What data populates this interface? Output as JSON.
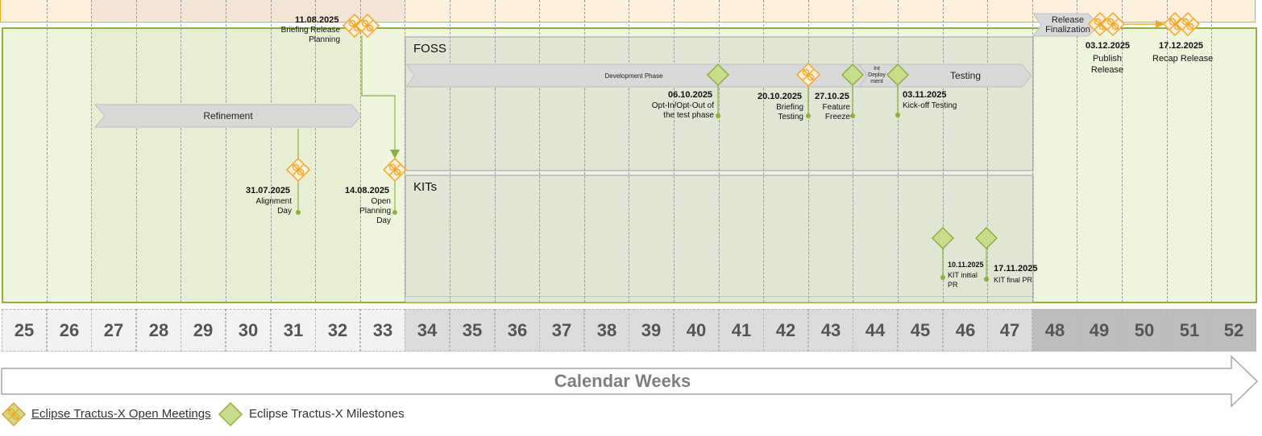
{
  "weeks": [
    "25",
    "26",
    "27",
    "28",
    "29",
    "30",
    "31",
    "32",
    "33",
    "34",
    "35",
    "36",
    "37",
    "38",
    "39",
    "40",
    "41",
    "42",
    "43",
    "44",
    "45",
    "46",
    "47",
    "48",
    "49",
    "50",
    "51",
    "52"
  ],
  "week_fill": [
    "#f2f2f2",
    "#f2f2f2",
    "#f2f2f2",
    "#f2f2f2",
    "#f2f2f2",
    "#f2f2f2",
    "#f2f2f2",
    "#f2f2f2",
    "#f2f2f2",
    "#dcdcdc",
    "#dcdcdc",
    "#dcdcdc",
    "#dcdcdc",
    "#dcdcdc",
    "#dcdcdc",
    "#dcdcdc",
    "#dcdcdc",
    "#dcdcdc",
    "#dcdcdc",
    "#dcdcdc",
    "#dcdcdc",
    "#dcdcdc",
    "#dcdcdc",
    "#bdbdbd",
    "#bdbdbd",
    "#bdbdbd",
    "#bdbdbd",
    "#bdbdbd"
  ],
  "colors": {
    "meeting_orange": "#f5a623",
    "milestone_green": "#8fb040",
    "milestone_fill": "#c8dc8c"
  },
  "phases": {
    "foss": "FOSS",
    "kits": "KITs"
  },
  "arrows": {
    "refinement": "Refinement",
    "development": "Development Phase",
    "int_deployment": "Int Deploy ment",
    "testing": "Testing",
    "release_finalization": "Release Finalization"
  },
  "milestones": {
    "m_11_08": {
      "date": "11.08.2025",
      "label": "Briefing Release Planning",
      "icon": "meeting-icon"
    },
    "m_31_07": {
      "date": "31.07.2025",
      "label": "Alignment Day",
      "icon": "meeting-icon"
    },
    "m_14_08": {
      "date": "14.08.2025",
      "label": "Open Planning Day",
      "icon": "meeting-icon"
    },
    "m_06_10": {
      "date": "06.10.2025",
      "label": "Opt-In/Opt-Out of the test phase",
      "icon": "milestone-icon"
    },
    "m_20_10": {
      "date": "20.10.2025",
      "label": "Briefing Testing",
      "icon": "meeting-icon"
    },
    "m_27_10": {
      "date": "27.10.25",
      "label": "Feature Freeze",
      "icon": "milestone-icon"
    },
    "m_03_11": {
      "date": "03.11.2025",
      "label": "Kick-off Testing",
      "icon": "milestone-icon"
    },
    "m_10_11": {
      "date": "10.11.2025",
      "label": "KIT initial PR",
      "icon": "milestone-icon"
    },
    "m_17_11": {
      "date": "17.11.2025",
      "label": "KIT final PR",
      "icon": "milestone-icon"
    },
    "m_03_12": {
      "date": "03.12.2025",
      "label": "Publish Release",
      "icon": "meeting-icon"
    },
    "m_17_12": {
      "date": "17.12.2025",
      "label": "Recap Release",
      "icon": "meeting-icon"
    }
  },
  "calendar_arrow": "Calendar Weeks",
  "legend": {
    "meetings": "Eclipse Tractus-X Open Meetings",
    "milestones": "Eclipse Tractus-X Milestones"
  }
}
